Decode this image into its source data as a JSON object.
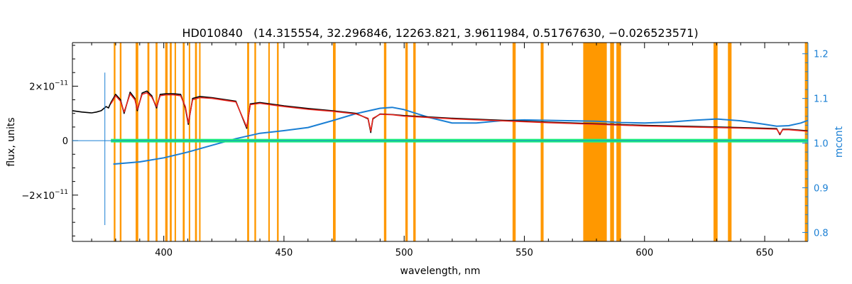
{
  "chart_data": {
    "type": "line",
    "title": "HD010840   (14.315554, 32.296846, 12263.821, 3.9611984, 0.51767630, −0.026523571)",
    "xlabel": "wavelength, nm",
    "ylabel": "flux, units",
    "y2label": "mcont",
    "xlim": [
      362,
      668
    ],
    "ylim": [
      -3.7e-11,
      3.6e-11
    ],
    "y2lim": [
      0.78,
      1.225
    ],
    "xticks": [
      {
        "value": 400,
        "label": "400"
      },
      {
        "value": 450,
        "label": "450"
      },
      {
        "value": 500,
        "label": "500"
      },
      {
        "value": 550,
        "label": "550"
      },
      {
        "value": 600,
        "label": "600"
      },
      {
        "value": 650,
        "label": "650"
      }
    ],
    "yticks": [
      {
        "value": 2e-11,
        "base": "2×10",
        "exp": "−11"
      },
      {
        "value": 0,
        "base": "0",
        "exp": ""
      },
      {
        "value": -2e-11,
        "base": "−2×10",
        "exp": "−11"
      }
    ],
    "y2ticks": [
      {
        "value": 0.8,
        "label": "0.8"
      },
      {
        "value": 0.9,
        "label": "0.9"
      },
      {
        "value": 1.0,
        "label": "1.0"
      },
      {
        "value": 1.1,
        "label": "1.1"
      },
      {
        "value": 1.2,
        "label": "1.2"
      }
    ],
    "masked_regions": [
      [
        379.2,
        379.9
      ],
      [
        381.7,
        382.4
      ],
      [
        388.3,
        389.4
      ],
      [
        393.2,
        394.0
      ],
      [
        396.6,
        397.4
      ],
      [
        400.6,
        401.6
      ],
      [
        402.5,
        403.3
      ],
      [
        404.5,
        405.1
      ],
      [
        407.9,
        408.7
      ],
      [
        410.4,
        411.0
      ],
      [
        413.0,
        413.8
      ],
      [
        414.7,
        415.3
      ],
      [
        434.7,
        435.5
      ],
      [
        437.7,
        438.4
      ],
      [
        443.5,
        444.1
      ],
      [
        447.1,
        447.8
      ],
      [
        470.4,
        471.5
      ],
      [
        491.6,
        492.6
      ],
      [
        500.5,
        501.5
      ],
      [
        503.8,
        504.8
      ],
      [
        545.1,
        546.4
      ],
      [
        556.8,
        558.0
      ],
      [
        574.5,
        584.3
      ],
      [
        585.7,
        587.3
      ],
      [
        588.3,
        590.2
      ],
      [
        628.7,
        630.4
      ],
      [
        634.7,
        636.2
      ],
      [
        666.7,
        668.0
      ]
    ],
    "series": [
      {
        "role": "observed",
        "color": "#000000",
        "axis": "left",
        "x": [
          362,
          366,
          370,
          372,
          374,
          376,
          377,
          378,
          380,
          382,
          383.5,
          386,
          388,
          389,
          391,
          393,
          395,
          397,
          398.5,
          401,
          404,
          407,
          409,
          410.2,
          412,
          415,
          420,
          430,
          434.5,
          436,
          440,
          450,
          460,
          470,
          480,
          485,
          486.1,
          487,
          490,
          495,
          500,
          520,
          540,
          560,
          580,
          600,
          620,
          640,
          655,
          656.3,
          657.5,
          660,
          668
        ],
        "y": [
          1.1e-11,
          1.05e-11,
          1.02e-11,
          1.05e-11,
          1.1e-11,
          1.25e-11,
          1.2e-11,
          1.4e-11,
          1.7e-11,
          1.5e-11,
          1e-11,
          1.78e-11,
          1.55e-11,
          1.1e-11,
          1.75e-11,
          1.82e-11,
          1.65e-11,
          1.2e-11,
          1.7e-11,
          1.72e-11,
          1.72e-11,
          1.7e-11,
          1.2e-11,
          6e-12,
          1.55e-11,
          1.62e-11,
          1.58e-11,
          1.45e-11,
          4.5e-12,
          1.35e-11,
          1.4e-11,
          1.28e-11,
          1.18e-11,
          1.1e-11,
          1e-11,
          8e-12,
          3e-12,
          8e-12,
          9.8e-12,
          9.6e-12,
          9.2e-12,
          8.2e-12,
          7.5e-12,
          6.8e-12,
          6.2e-12,
          5.6e-12,
          5.2e-12,
          4.8e-12,
          4.4e-12,
          2.2e-12,
          4.2e-12,
          4.2e-12,
          3.6e-12
        ]
      },
      {
        "role": "model",
        "color": "#e8241c",
        "axis": "left",
        "x": [
          378,
          380,
          382,
          383.5,
          386,
          388,
          389,
          391,
          393,
          395,
          397,
          398.5,
          401,
          404,
          407,
          409,
          410.2,
          412,
          415,
          420,
          430,
          434.5,
          436,
          440,
          450,
          460,
          470,
          480,
          485,
          486.1,
          487,
          490,
          495,
          500,
          520,
          540,
          560,
          580,
          600,
          620,
          640,
          655,
          656.3,
          657.5,
          660,
          668
        ],
        "y": [
          1.35e-11,
          1.65e-11,
          1.45e-11,
          1.05e-11,
          1.72e-11,
          1.5e-11,
          1.15e-11,
          1.7e-11,
          1.76e-11,
          1.6e-11,
          1.25e-11,
          1.65e-11,
          1.68e-11,
          1.68e-11,
          1.65e-11,
          1.25e-11,
          6.5e-12,
          1.5e-11,
          1.58e-11,
          1.55e-11,
          1.42e-11,
          5e-12,
          1.32e-11,
          1.37e-11,
          1.25e-11,
          1.15e-11,
          1.08e-11,
          9.8e-12,
          8.2e-12,
          3.5e-12,
          8.2e-12,
          9.7e-12,
          9.5e-12,
          9e-12,
          8e-12,
          7.3e-12,
          6.6e-12,
          6e-12,
          5.4e-12,
          5e-12,
          4.6e-12,
          4.2e-12,
          2.5e-12,
          4e-12,
          4e-12,
          3.4e-12
        ]
      },
      {
        "role": "residual",
        "color": "#19f07a",
        "axis": "left",
        "x": [
          378,
          390,
          400,
          410,
          420,
          430,
          440,
          450,
          460,
          480,
          500,
          520,
          540,
          560,
          575,
          590,
          610,
          630,
          650,
          668
        ],
        "y": [
          0,
          0,
          0,
          0,
          0,
          0,
          0,
          0,
          0,
          0,
          0,
          0,
          0,
          0,
          0,
          0,
          0,
          0,
          0,
          0
        ]
      },
      {
        "role": "mcont",
        "color": "#1a7fd4",
        "axis": "right",
        "x": [
          379,
          390,
          400,
          410,
          420,
          430,
          440,
          450,
          460,
          470,
          480,
          490,
          495,
          500,
          510,
          520,
          530,
          540,
          550,
          560,
          570,
          580,
          590,
          600,
          610,
          620,
          630,
          640,
          650,
          655,
          660,
          665,
          668
        ],
        "y": [
          0.953,
          0.958,
          0.967,
          0.98,
          0.995,
          1.01,
          1.022,
          1.028,
          1.035,
          1.05,
          1.066,
          1.078,
          1.08,
          1.075,
          1.058,
          1.045,
          1.045,
          1.05,
          1.052,
          1.051,
          1.05,
          1.049,
          1.046,
          1.045,
          1.047,
          1.051,
          1.054,
          1.05,
          1.042,
          1.038,
          1.039,
          1.045,
          1.051
        ]
      }
    ]
  }
}
